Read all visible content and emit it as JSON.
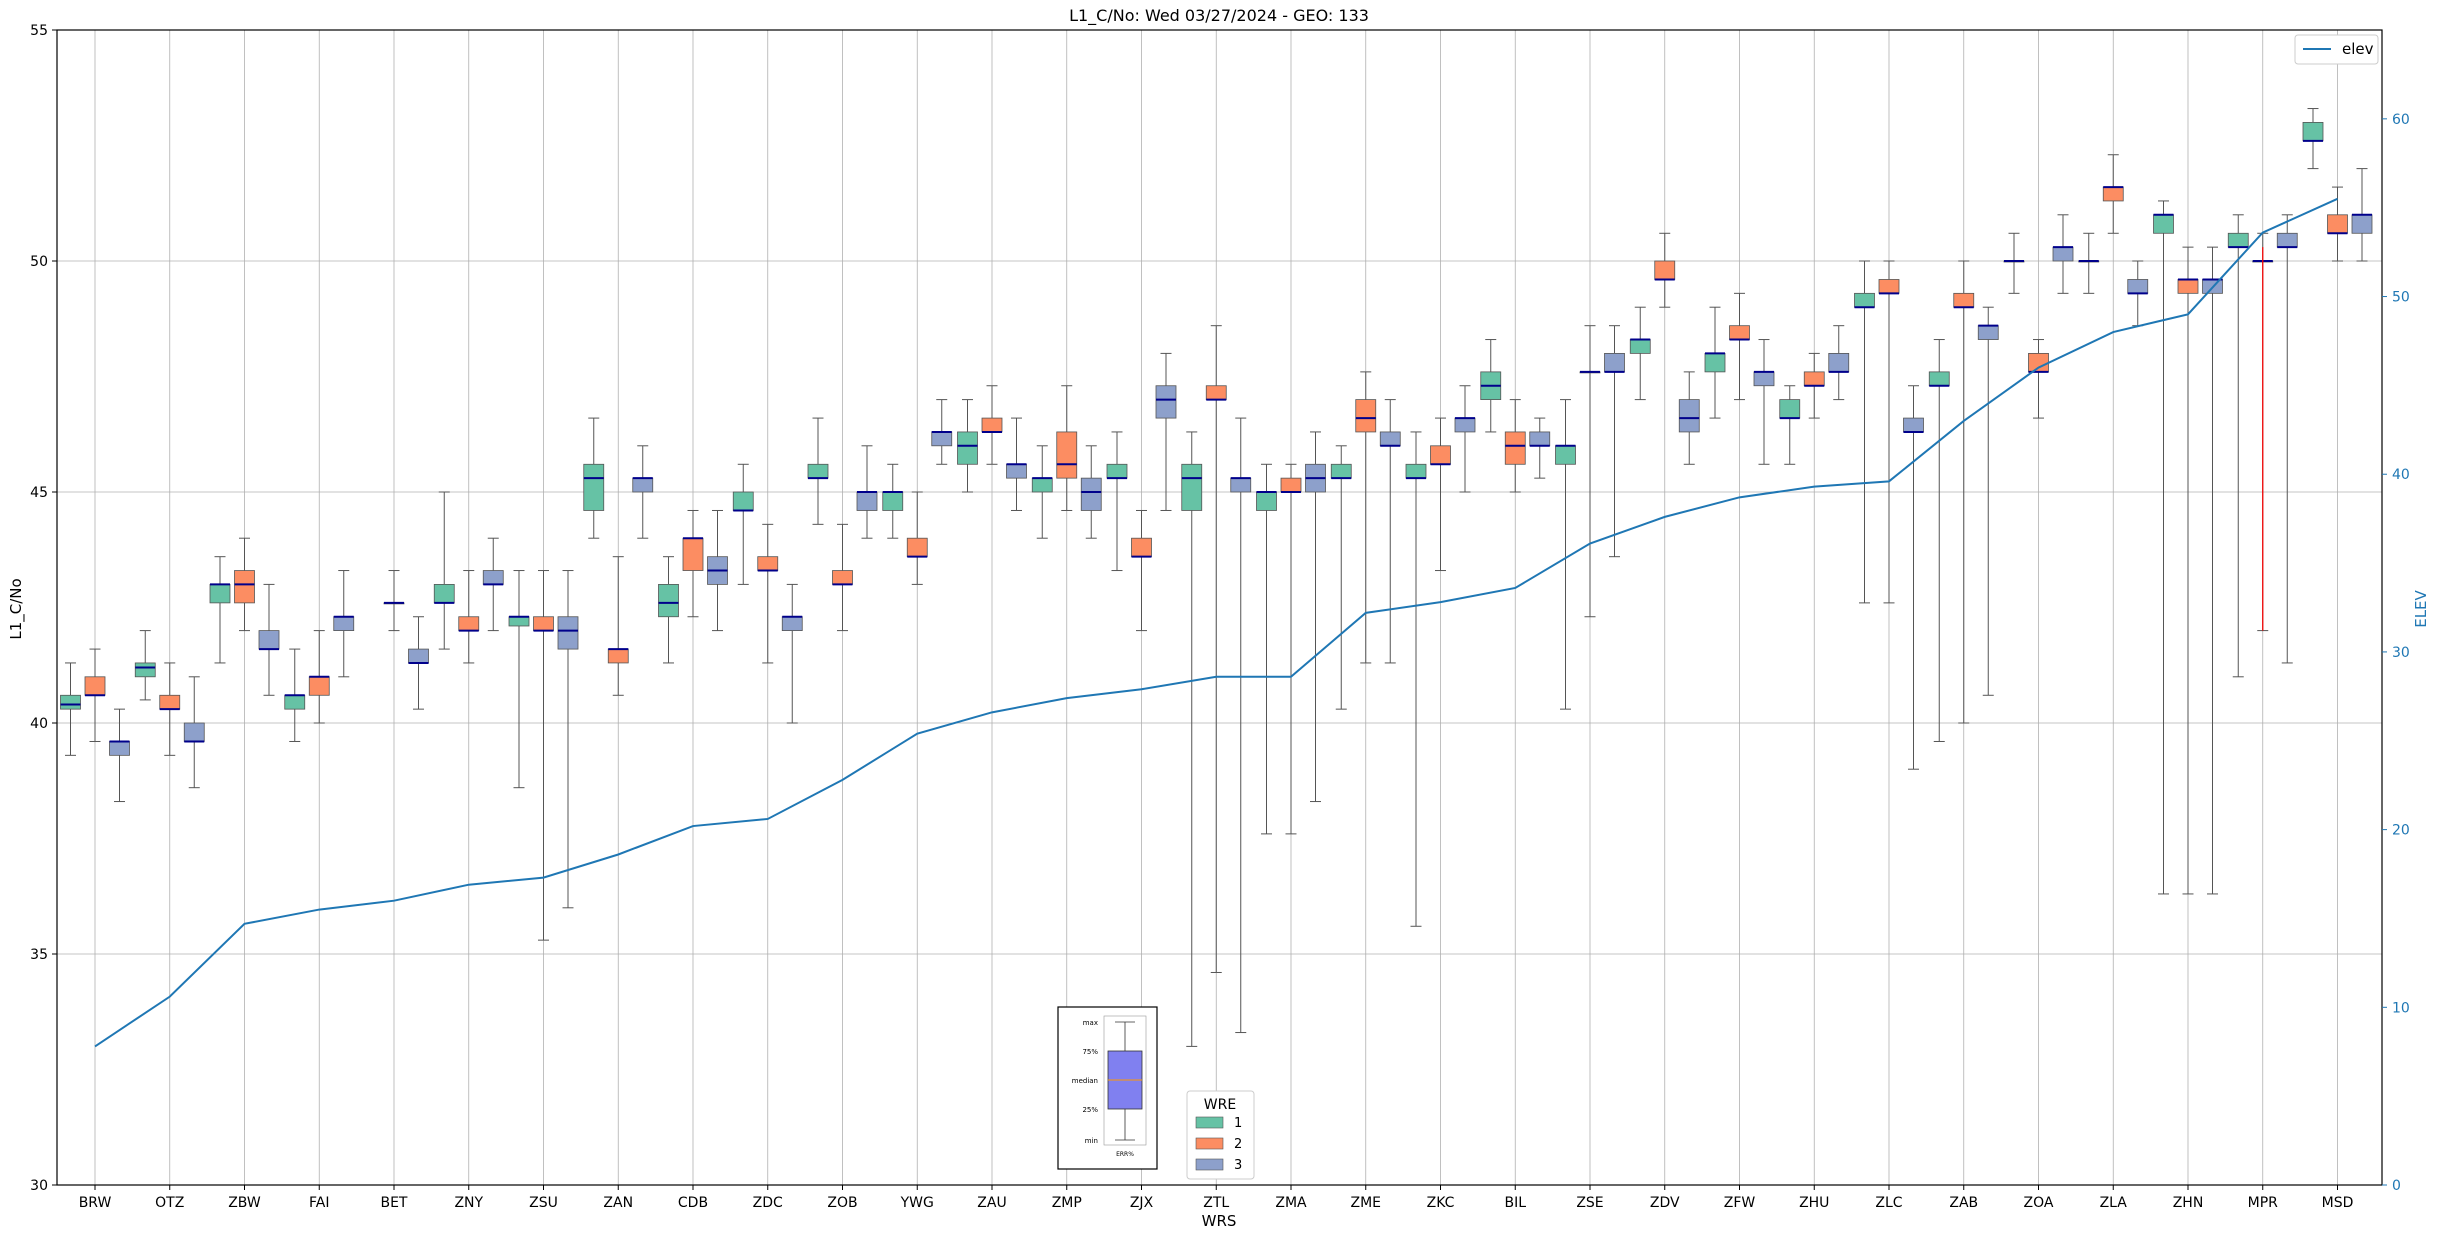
{
  "chart_data": {
    "type": "box",
    "title": "L1_C/No: Wed 03/27/2024 - GEO: 133",
    "xlabel": "WRS",
    "ylabel": "L1_C/No",
    "y2label": "ELEV",
    "ylim": [
      30,
      55
    ],
    "y2lim": [
      0,
      65
    ],
    "yticks": [
      30,
      35,
      40,
      45,
      50,
      55
    ],
    "y2ticks": [
      0,
      10,
      20,
      30,
      40,
      50,
      60
    ],
    "grid": true,
    "categories": [
      "BRW",
      "OTZ",
      "ZBW",
      "FAI",
      "BET",
      "ZNY",
      "ZSU",
      "ZAN",
      "CDB",
      "ZDC",
      "ZOB",
      "YWG",
      "ZAU",
      "ZMP",
      "ZJX",
      "ZTL",
      "ZMA",
      "ZME",
      "ZKC",
      "BIL",
      "ZSE",
      "ZDV",
      "ZFW",
      "ZHU",
      "ZLC",
      "ZAB",
      "ZOA",
      "ZLA",
      "ZHN",
      "MPR",
      "MSD"
    ],
    "colors": {
      "wre1": "#66c2a5",
      "wre2": "#fc8d62",
      "wre3": "#8da0cb",
      "median": "#00008b",
      "whisker": "#555555",
      "elev": "#1f77b4",
      "highlight": "#ff0000"
    },
    "legend_wre": {
      "title": "WRE",
      "placement": "bottom-center",
      "items": [
        {
          "label": "1",
          "color": "#66c2a5"
        },
        {
          "label": "2",
          "color": "#fc8d62"
        },
        {
          "label": "3",
          "color": "#8da0cb"
        }
      ]
    },
    "legend_line": {
      "label": "elev",
      "placement": "top-right"
    },
    "key_box": {
      "labels": [
        "max",
        "75%",
        "median",
        "25%",
        "min"
      ],
      "caption": "ERR%"
    },
    "series": [
      {
        "name": "1",
        "boxes": [
          [
            39.3,
            40.3,
            40.4,
            40.6,
            41.3
          ],
          [
            40.5,
            41.0,
            41.2,
            41.3,
            42.0
          ],
          [
            41.3,
            42.6,
            43.0,
            43.0,
            43.6
          ],
          [
            39.6,
            40.3,
            40.6,
            40.6,
            41.6
          ],
          null,
          [
            41.6,
            42.6,
            42.6,
            43.0,
            45.0
          ],
          [
            38.6,
            42.1,
            42.3,
            42.3,
            43.3
          ],
          [
            44.0,
            44.6,
            45.3,
            45.6,
            46.6
          ],
          [
            41.3,
            42.3,
            42.6,
            43.0,
            43.6
          ],
          [
            43.0,
            44.6,
            44.6,
            45.0,
            45.6
          ],
          [
            44.3,
            45.3,
            45.3,
            45.6,
            46.6
          ],
          [
            44.0,
            44.6,
            45.0,
            45.0,
            45.6
          ],
          [
            45.0,
            45.6,
            46.0,
            46.3,
            47.0
          ],
          [
            44.0,
            45.0,
            45.3,
            45.3,
            46.0
          ],
          [
            43.3,
            45.3,
            45.3,
            45.6,
            46.3
          ],
          [
            33.0,
            44.6,
            45.3,
            45.6,
            46.3
          ],
          [
            37.6,
            44.6,
            45.0,
            45.0,
            45.6
          ],
          [
            40.3,
            45.3,
            45.3,
            45.6,
            46.0
          ],
          [
            35.6,
            45.3,
            45.3,
            45.6,
            46.3
          ],
          [
            46.3,
            47.0,
            47.3,
            47.6,
            48.3
          ],
          [
            40.3,
            45.6,
            46.0,
            46.0,
            47.0
          ],
          [
            47.0,
            48.0,
            48.3,
            48.3,
            49.0
          ],
          [
            46.6,
            47.6,
            48.0,
            48.0,
            49.0
          ],
          [
            45.6,
            46.6,
            46.6,
            47.0,
            47.3
          ],
          [
            42.6,
            49.0,
            49.0,
            49.3,
            50.0
          ],
          [
            39.6,
            47.3,
            47.3,
            47.6,
            48.3
          ],
          [
            49.3,
            50.0,
            50.0,
            50.0,
            50.6
          ],
          [
            49.3,
            50.0,
            50.0,
            50.0,
            50.6
          ],
          [
            36.3,
            50.6,
            51.0,
            51.0,
            51.3
          ],
          [
            41.0,
            50.3,
            50.3,
            50.6,
            51.0
          ],
          [
            52.0,
            52.6,
            52.6,
            53.0,
            53.3
          ]
        ]
      },
      {
        "name": "2",
        "boxes": [
          [
            39.6,
            40.6,
            40.6,
            41.0,
            41.6
          ],
          [
            39.3,
            40.3,
            40.3,
            40.6,
            41.3
          ],
          [
            42.0,
            42.6,
            43.0,
            43.3,
            44.0
          ],
          [
            40.0,
            40.6,
            41.0,
            41.0,
            42.0
          ],
          [
            42.0,
            42.6,
            42.6,
            42.6,
            43.3
          ],
          [
            41.3,
            42.0,
            42.0,
            42.3,
            43.3
          ],
          [
            35.3,
            42.0,
            42.0,
            42.3,
            43.3
          ],
          [
            40.6,
            41.3,
            41.6,
            41.6,
            43.6
          ],
          [
            42.3,
            43.3,
            44.0,
            44.0,
            44.6
          ],
          [
            41.3,
            43.3,
            43.3,
            43.6,
            44.3
          ],
          [
            42.0,
            43.0,
            43.0,
            43.3,
            44.3
          ],
          [
            43.0,
            43.6,
            43.6,
            44.0,
            45.0
          ],
          [
            45.6,
            46.3,
            46.3,
            46.6,
            47.3
          ],
          [
            44.6,
            45.3,
            45.6,
            46.3,
            47.3
          ],
          [
            42.0,
            43.6,
            43.6,
            44.0,
            44.6
          ],
          [
            34.6,
            47.0,
            47.0,
            47.3,
            48.6
          ],
          [
            37.6,
            45.0,
            45.0,
            45.3,
            45.6
          ],
          [
            41.3,
            46.3,
            46.6,
            47.0,
            47.6
          ],
          [
            43.3,
            45.6,
            45.6,
            46.0,
            46.6
          ],
          [
            45.0,
            45.6,
            46.0,
            46.3,
            47.0
          ],
          [
            42.3,
            47.6,
            47.6,
            47.6,
            48.6
          ],
          [
            49.0,
            49.6,
            49.6,
            50.0,
            50.6
          ],
          [
            47.0,
            48.3,
            48.3,
            48.6,
            49.3
          ],
          [
            46.6,
            47.3,
            47.3,
            47.6,
            48.0
          ],
          [
            42.6,
            49.3,
            49.3,
            49.6,
            50.0
          ],
          [
            40.0,
            49.0,
            49.0,
            49.3,
            50.0
          ],
          [
            46.6,
            47.6,
            47.6,
            48.0,
            48.3
          ],
          [
            50.6,
            51.3,
            51.6,
            51.6,
            52.3
          ],
          [
            36.3,
            49.3,
            49.6,
            49.6,
            50.3
          ],
          [
            42.0,
            50.0,
            50.0,
            50.0,
            50.6
          ],
          [
            50.0,
            50.6,
            50.6,
            51.0,
            51.6
          ]
        ]
      },
      {
        "name": "3",
        "boxes": [
          [
            38.3,
            39.3,
            39.6,
            39.6,
            40.3
          ],
          [
            38.6,
            39.6,
            39.6,
            40.0,
            41.0
          ],
          [
            40.6,
            41.6,
            41.6,
            42.0,
            43.0
          ],
          [
            41.0,
            42.0,
            42.3,
            42.3,
            43.3
          ],
          [
            40.3,
            41.3,
            41.3,
            41.6,
            42.3
          ],
          [
            42.0,
            43.0,
            43.0,
            43.3,
            44.0
          ],
          [
            36.0,
            41.6,
            42.0,
            42.3,
            43.3
          ],
          [
            44.0,
            45.0,
            45.3,
            45.3,
            46.0
          ],
          [
            42.0,
            43.0,
            43.3,
            43.6,
            44.6
          ],
          [
            40.0,
            42.0,
            42.3,
            42.3,
            43.0
          ],
          [
            44.0,
            44.6,
            45.0,
            45.0,
            46.0
          ],
          [
            45.6,
            46.0,
            46.3,
            46.3,
            47.0
          ],
          [
            44.6,
            45.3,
            45.6,
            45.6,
            46.6
          ],
          [
            44.0,
            44.6,
            45.0,
            45.3,
            46.0
          ],
          [
            44.6,
            46.6,
            47.0,
            47.3,
            48.0
          ],
          [
            33.3,
            45.0,
            45.3,
            45.3,
            46.6
          ],
          [
            38.3,
            45.0,
            45.3,
            45.6,
            46.3
          ],
          [
            41.3,
            46.0,
            46.0,
            46.3,
            47.0
          ],
          [
            45.0,
            46.3,
            46.6,
            46.6,
            47.3
          ],
          [
            45.3,
            46.0,
            46.0,
            46.3,
            46.6
          ],
          [
            43.6,
            47.6,
            47.6,
            48.0,
            48.6
          ],
          [
            45.6,
            46.3,
            46.6,
            47.0,
            47.6
          ],
          [
            45.6,
            47.3,
            47.6,
            47.6,
            48.3
          ],
          [
            47.0,
            47.6,
            47.6,
            48.0,
            48.6
          ],
          [
            39.0,
            46.3,
            46.3,
            46.6,
            47.3
          ],
          [
            40.6,
            48.3,
            48.6,
            48.6,
            49.0
          ],
          [
            49.3,
            50.0,
            50.3,
            50.3,
            51.0
          ],
          [
            48.6,
            49.3,
            49.3,
            49.6,
            50.0
          ],
          [
            36.3,
            49.3,
            49.6,
            49.6,
            50.3
          ],
          [
            41.3,
            50.3,
            50.3,
            50.6,
            51.0
          ],
          [
            50.0,
            50.6,
            51.0,
            51.0,
            52.0
          ]
        ]
      }
    ],
    "elev": {
      "name": "elev",
      "values": [
        7.8,
        10.6,
        14.7,
        15.5,
        16.0,
        16.9,
        17.3,
        18.6,
        20.2,
        20.6,
        22.8,
        25.4,
        26.6,
        27.4,
        27.9,
        28.6,
        28.6,
        32.2,
        32.8,
        33.6,
        36.1,
        37.6,
        38.7,
        39.3,
        39.6,
        43.0,
        46.0,
        48.0,
        49.0,
        53.6,
        55.5
      ]
    },
    "highlight": {
      "category": "MPR",
      "low": 42.0,
      "high": 50.3
    }
  }
}
